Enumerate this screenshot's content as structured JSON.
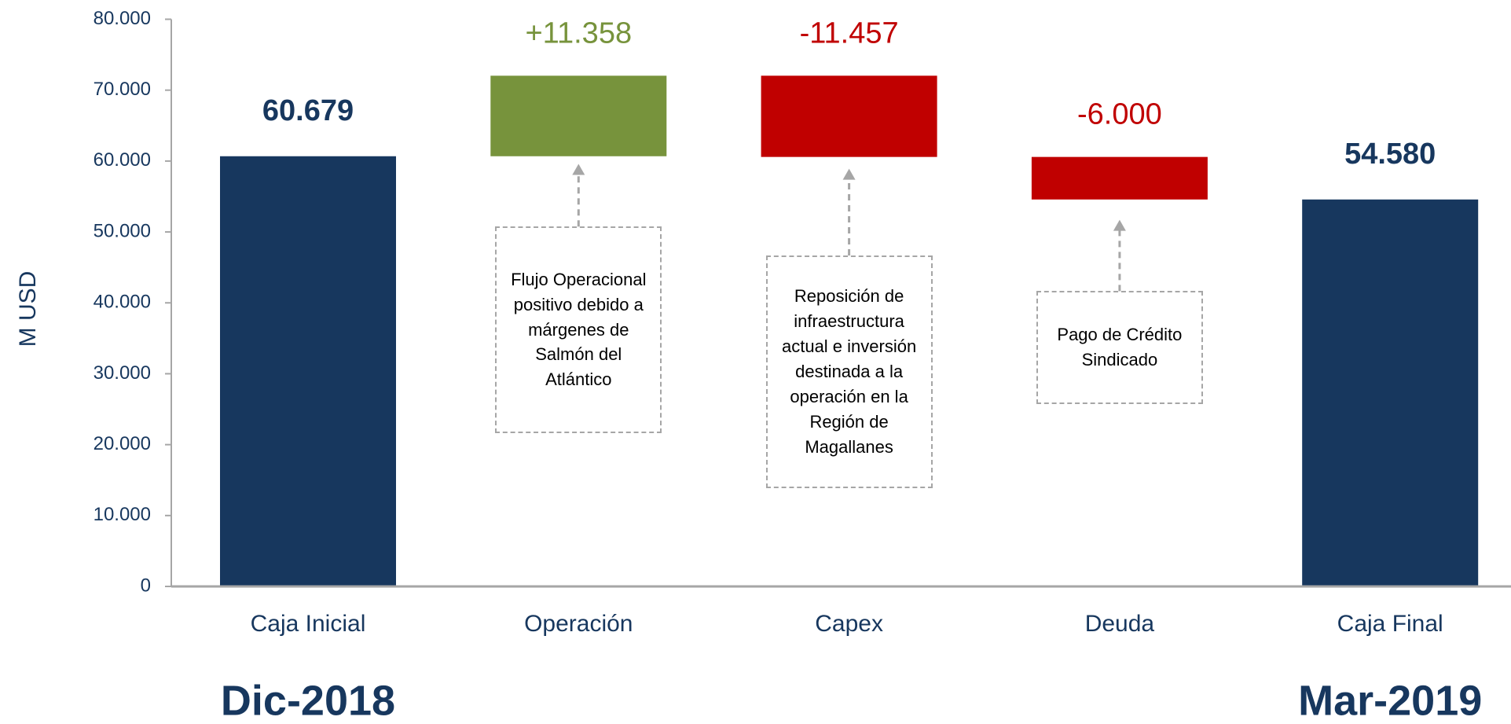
{
  "chart_data": {
    "type": "waterfall",
    "y_label": "M USD",
    "categories": [
      "Caja Inicial",
      "Operación",
      "Capex",
      "Deuda",
      "Caja Final"
    ],
    "measure": [
      "absolute",
      "relative",
      "relative",
      "relative",
      "absolute"
    ],
    "values": [
      60679,
      11358,
      -11457,
      -6000,
      54580
    ],
    "value_labels": [
      "60.679",
      "+11.358",
      "-11.457",
      "-6.000",
      "54.580"
    ],
    "colors": [
      "#17375e",
      "#77933c",
      "#c00000",
      "#c00000",
      "#17375e"
    ],
    "ylim": [
      0,
      80000
    ],
    "yticks": [
      0,
      {
        "value": 10000,
        "label": "10.000"
      },
      {
        "value": 20000,
        "label": "20.000"
      },
      {
        "value": 30000,
        "label": "30.000"
      },
      {
        "value": 40000,
        "label": "40.000"
      },
      {
        "value": 50000,
        "label": "50.000"
      },
      {
        "value": 60000,
        "label": "60.000"
      },
      {
        "value": 70000,
        "label": "70.000"
      },
      {
        "value": 80000,
        "label": "80.000"
      }
    ],
    "annotations": [
      {
        "text": "Flujo Operacional positivo debido a márgenes de Salmón del Atlántico"
      },
      {
        "text": "Reposición de infraestructura actual e inversión destinada a la operación en la Región de Magallanes"
      },
      {
        "text": "Pago de Crédito Sindicado"
      }
    ],
    "period_labels": [
      "Dic-2018",
      "Mar-2019"
    ]
  }
}
